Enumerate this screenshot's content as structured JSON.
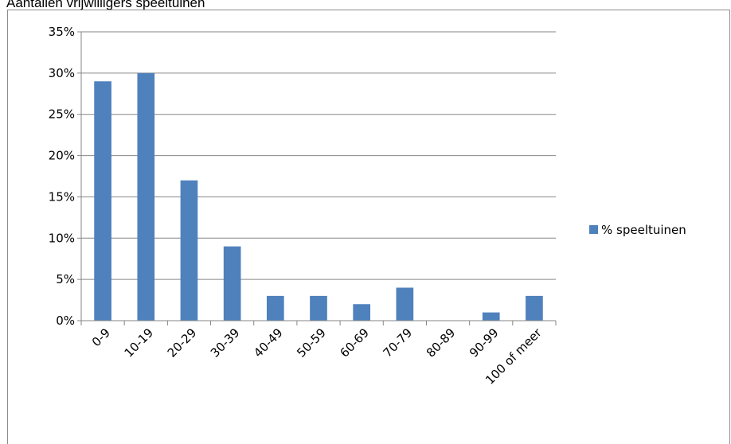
{
  "chart_data": {
    "type": "bar",
    "title": "Aantallen vrijwilligers speeltuinen",
    "xlabel": "",
    "ylabel": "",
    "categories": [
      "0-9",
      "10-19",
      "20-29",
      "30-39",
      "40-49",
      "50-59",
      "60-69",
      "70-79",
      "80-89",
      "90-99",
      "100 of meer"
    ],
    "series": [
      {
        "name": "% speeltuinen",
        "values": [
          29,
          30,
          17,
          9,
          3,
          3,
          2,
          4,
          0,
          1,
          3
        ]
      }
    ],
    "ylim": [
      0,
      35
    ],
    "yticks": [
      "0%",
      "5%",
      "10%",
      "15%",
      "20%",
      "25%",
      "30%",
      "35%"
    ],
    "grid": true,
    "legend": "right",
    "colors": {
      "bar": "#4f81bd",
      "grid": "#868686",
      "axis": "#868686"
    }
  }
}
